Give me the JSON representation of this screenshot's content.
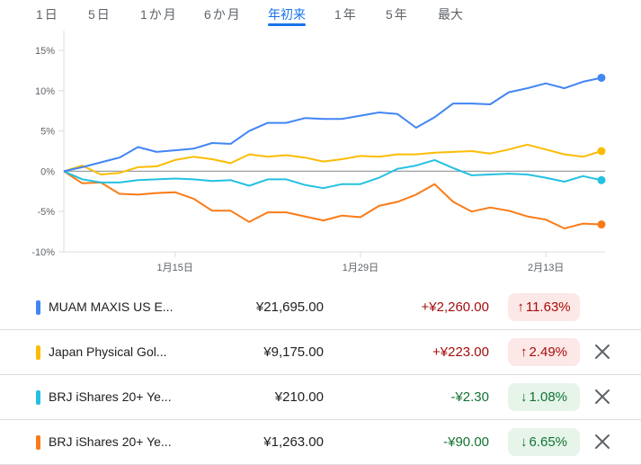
{
  "range_tabs": [
    {
      "label": "1日",
      "active": false
    },
    {
      "label": "5日",
      "active": false
    },
    {
      "label": "1か月",
      "active": false
    },
    {
      "label": "6か月",
      "active": false
    },
    {
      "label": "年初来",
      "active": true
    },
    {
      "label": "1年",
      "active": false
    },
    {
      "label": "5年",
      "active": false
    },
    {
      "label": "最大",
      "active": false
    }
  ],
  "chart_data": {
    "type": "line",
    "yticks": [
      "15%",
      "10%",
      "5%",
      "0%",
      "-5%",
      "-10%"
    ],
    "ylim": [
      -10,
      15
    ],
    "xticks": [
      {
        "label": "1月15日",
        "index": 6
      },
      {
        "label": "1月29日",
        "index": 16
      },
      {
        "label": "2月13日",
        "index": 26
      }
    ],
    "series": [
      {
        "name": "MUAM MAXIS US E...",
        "color": "#4285f4",
        "values": [
          0,
          0.5,
          1.1,
          1.7,
          3.0,
          2.4,
          2.6,
          2.8,
          3.5,
          3.4,
          5.0,
          6.0,
          6.0,
          6.6,
          6.5,
          6.5,
          6.9,
          7.3,
          7.1,
          5.4,
          6.7,
          8.4,
          8.4,
          8.3,
          9.8,
          10.3,
          10.9,
          10.3,
          11.1,
          11.6
        ]
      },
      {
        "name": "Japan Physical Gol...",
        "color": "#fbbc04",
        "values": [
          0,
          0.7,
          -0.4,
          -0.2,
          0.5,
          0.6,
          1.4,
          1.8,
          1.5,
          1.0,
          2.1,
          1.8,
          2.0,
          1.7,
          1.2,
          1.5,
          1.9,
          1.8,
          2.1,
          2.1,
          2.3,
          2.4,
          2.5,
          2.2,
          2.7,
          3.3,
          2.7,
          2.1,
          1.8,
          2.5
        ]
      },
      {
        "name": "BRJ iShares 20+ Ye...",
        "color": "#24c1e0",
        "values": [
          0,
          -1.0,
          -1.4,
          -1.4,
          -1.1,
          -1.0,
          -0.9,
          -1.0,
          -1.2,
          -1.1,
          -1.8,
          -1.0,
          -1.0,
          -1.7,
          -2.1,
          -1.6,
          -1.6,
          -0.8,
          0.3,
          0.7,
          1.4,
          0.4,
          -0.5,
          -0.4,
          -0.3,
          -0.4,
          -0.8,
          -1.3,
          -0.6,
          -1.1
        ]
      },
      {
        "name": "BRJ iShares 20+ Ye...",
        "color": "#fa7b17",
        "values": [
          0,
          -1.5,
          -1.4,
          -2.8,
          -2.9,
          -2.7,
          -2.6,
          -3.4,
          -4.9,
          -4.9,
          -6.3,
          -5.1,
          -5.1,
          -5.6,
          -6.1,
          -5.5,
          -5.7,
          -4.3,
          -3.8,
          -2.9,
          -1.6,
          -3.8,
          -5.0,
          -4.5,
          -4.9,
          -5.6,
          -6.0,
          -7.1,
          -6.5,
          -6.6
        ]
      }
    ]
  },
  "holdings": [
    {
      "name": "MUAM MAXIS US E...",
      "color": "#4285f4",
      "price": "¥21,695.00",
      "change": "+¥2,260.00",
      "direction": "up",
      "arrow": "↑",
      "percent": "11.63%",
      "removable": false
    },
    {
      "name": "Japan Physical Gol...",
      "color": "#fbbc04",
      "price": "¥9,175.00",
      "change": "+¥223.00",
      "direction": "up",
      "arrow": "↑",
      "percent": "2.49%",
      "removable": true
    },
    {
      "name": "BRJ iShares 20+ Ye...",
      "color": "#24c1e0",
      "price": "¥210.00",
      "change": "-¥2.30",
      "direction": "down",
      "arrow": "↓",
      "percent": "1.08%",
      "removable": true
    },
    {
      "name": "BRJ iShares 20+ Ye...",
      "color": "#fa7b17",
      "price": "¥1,263.00",
      "change": "-¥90.00",
      "direction": "down",
      "arrow": "↓",
      "percent": "6.65%",
      "removable": true
    }
  ]
}
